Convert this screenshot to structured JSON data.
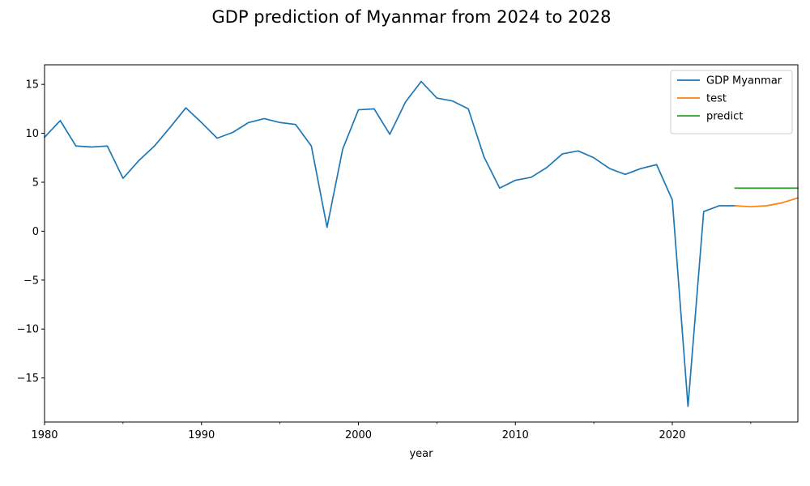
{
  "chart_data": {
    "type": "line",
    "title": "GDP prediction of Myanmar from 2024 to 2028",
    "xlabel": "year",
    "ylabel": "",
    "xlim": [
      1980,
      2028
    ],
    "ylim": [
      -19.5,
      17
    ],
    "x_ticks": [
      1980,
      1990,
      2000,
      2010,
      2020
    ],
    "x_minor_ticks": [
      1985,
      1995,
      2005,
      2015,
      2025
    ],
    "y_ticks": [
      -15,
      -10,
      -5,
      0,
      5,
      10,
      15
    ],
    "grid": false,
    "legend_position": "top-right",
    "series": [
      {
        "name": "GDP Myanmar",
        "color": "#1f77b4",
        "x": [
          1980,
          1981,
          1982,
          1983,
          1984,
          1985,
          1986,
          1987,
          1988,
          1989,
          1990,
          1991,
          1992,
          1993,
          1994,
          1995,
          1996,
          1997,
          1998,
          1999,
          2000,
          2001,
          2002,
          2003,
          2004,
          2005,
          2006,
          2007,
          2008,
          2009,
          2010,
          2011,
          2012,
          2013,
          2014,
          2015,
          2016,
          2017,
          2018,
          2019,
          2020,
          2021,
          2022,
          2023,
          2024
        ],
        "y": [
          9.6,
          11.3,
          8.7,
          8.6,
          8.7,
          5.4,
          7.2,
          8.7,
          10.6,
          12.6,
          11.1,
          9.5,
          10.1,
          11.1,
          11.5,
          11.1,
          10.9,
          8.7,
          0.4,
          8.4,
          12.4,
          12.5,
          9.9,
          13.2,
          15.3,
          13.6,
          13.3,
          12.5,
          7.6,
          4.4,
          5.2,
          5.5,
          6.5,
          7.9,
          8.2,
          7.5,
          6.4,
          5.8,
          6.4,
          6.8,
          3.2,
          -17.9,
          2.0,
          2.6,
          2.6
        ]
      },
      {
        "name": "test",
        "color": "#ff7f0e",
        "x": [
          2024,
          2025,
          2026,
          2027,
          2028
        ],
        "y": [
          2.6,
          2.5,
          2.6,
          2.9,
          3.4
        ]
      },
      {
        "name": "predict",
        "color": "#2ca02c",
        "x": [
          2024,
          2025,
          2026,
          2027,
          2028
        ],
        "y": [
          4.4,
          4.4,
          4.4,
          4.4,
          4.4
        ]
      }
    ]
  }
}
